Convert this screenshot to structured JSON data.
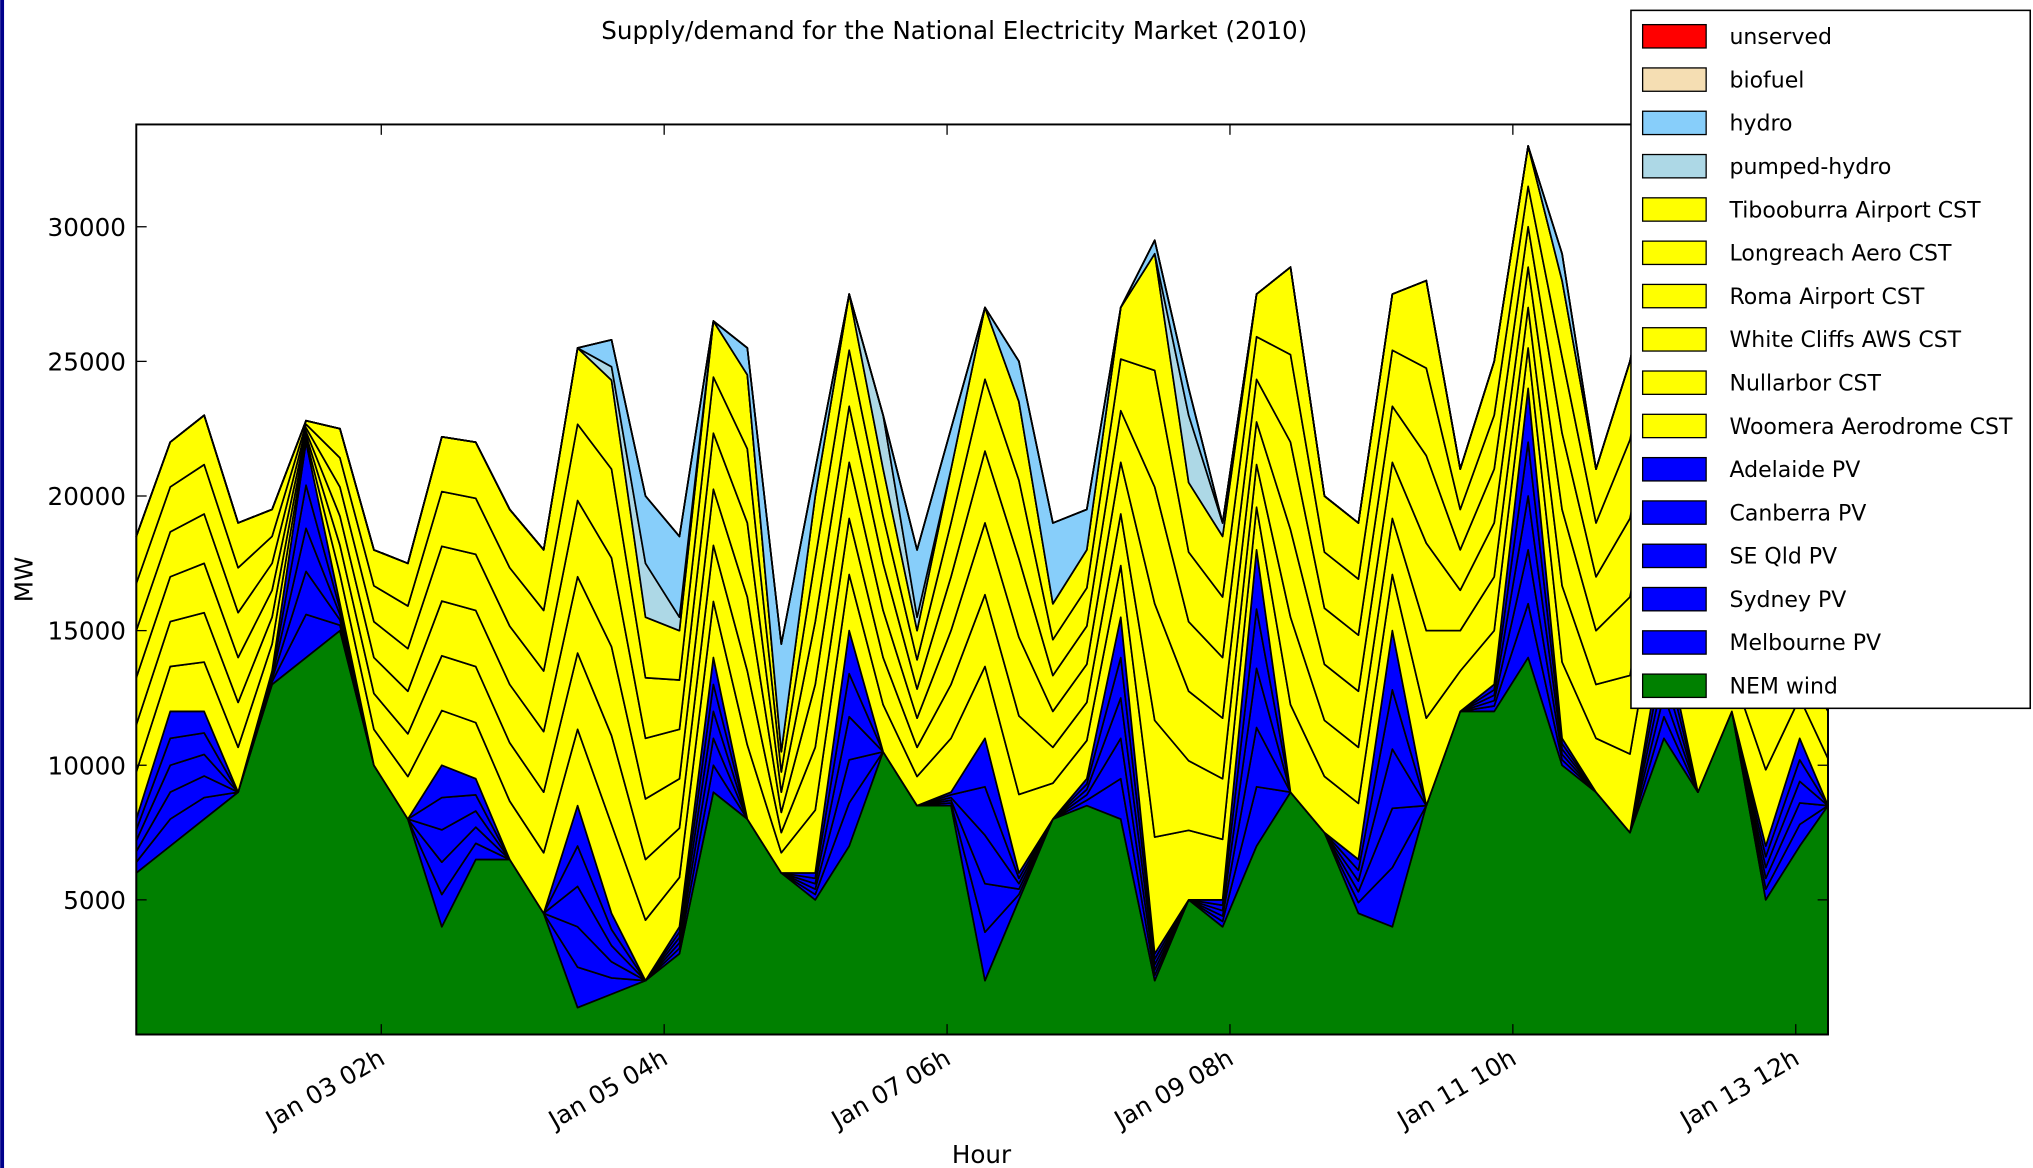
{
  "chart_data": {
    "type": "stacked-area",
    "title": "Supply/demand for the National Electricity Market (2010)",
    "x_label": "Hour",
    "y_label": "MW",
    "x": [
      0,
      6,
      12,
      18,
      24,
      30,
      36,
      42,
      48,
      54,
      60,
      66,
      72,
      78,
      84,
      90,
      96,
      102,
      108,
      114,
      120,
      126,
      132,
      138,
      144,
      150,
      156,
      162,
      168,
      174,
      180,
      186,
      192,
      198,
      204,
      210,
      216,
      222,
      228,
      234,
      240,
      246,
      252,
      258,
      264,
      270,
      276,
      282,
      288,
      294,
      299
    ],
    "xlim": [
      0,
      299
    ],
    "xticks": [
      {
        "value": 43.3,
        "label": "Jan 03 02h"
      },
      {
        "value": 93.3,
        "label": "Jan 05 04h"
      },
      {
        "value": 143.3,
        "label": "Jan 07 06h"
      },
      {
        "value": 193.3,
        "label": "Jan 09 08h"
      },
      {
        "value": 243.3,
        "label": "Jan 11 10h"
      },
      {
        "value": 293.3,
        "label": "Jan 13 12h"
      }
    ],
    "ylim": [
      0,
      33800
    ],
    "yticks": [
      5000,
      10000,
      15000,
      20000,
      25000,
      30000
    ],
    "grid": false,
    "legend": "upper right",
    "series": [
      {
        "name": "unserved",
        "color": "#ff0000",
        "values": [
          0,
          0,
          0,
          0,
          0,
          0,
          0,
          0,
          0,
          0,
          0,
          0,
          0,
          0,
          0,
          0,
          0,
          0,
          0,
          0,
          0,
          0,
          0,
          0,
          0,
          0,
          0,
          0,
          0,
          0,
          0,
          0,
          0,
          0,
          0,
          0,
          0,
          0,
          0,
          0,
          0,
          0,
          0,
          0,
          0,
          0,
          0,
          0,
          0,
          0,
          0
        ]
      },
      {
        "name": "biofuel",
        "color": "#f5deb3",
        "values": [
          0,
          0,
          0,
          0,
          0,
          0,
          0,
          0,
          0,
          0,
          0,
          0,
          0,
          0,
          0,
          0,
          0,
          0,
          0,
          0,
          0,
          0,
          0,
          0,
          0,
          0,
          0,
          0,
          0,
          0,
          0,
          0,
          0,
          0,
          0,
          0,
          0,
          0,
          0,
          0,
          0,
          0,
          0,
          0,
          0,
          0,
          0,
          0,
          0,
          0,
          0
        ]
      },
      {
        "name": "hydro",
        "color": "#87cefa",
        "values": [
          0,
          0,
          0,
          0,
          0,
          0,
          0,
          0,
          0,
          0,
          0,
          0,
          0,
          0,
          1000,
          2500,
          3000,
          0,
          1000,
          4000,
          1000,
          0,
          0,
          2500,
          1500,
          0,
          1500,
          3000,
          1500,
          0,
          500,
          1000,
          0,
          0,
          0,
          0,
          0,
          0,
          0,
          0,
          0,
          0,
          1000,
          0,
          0,
          0,
          0,
          0,
          0,
          0,
          0
        ]
      },
      {
        "name": "pumped-hydro",
        "color": "#add8e6",
        "values": [
          0,
          0,
          0,
          0,
          0,
          0,
          0,
          0,
          0,
          0,
          0,
          0,
          0,
          0,
          500,
          2000,
          500,
          0,
          0,
          0,
          0,
          0,
          2000,
          500,
          0,
          0,
          0,
          0,
          0,
          0,
          0,
          2500,
          500,
          0,
          0,
          0,
          0,
          0,
          0,
          0,
          0,
          0,
          0,
          0,
          0,
          0,
          0,
          0,
          0,
          0,
          0
        ]
      },
      {
        "name": "Tibooburra Airport CST",
        "color": "#ffff00",
        "values": [
          1750,
          1667,
          1833,
          1667,
          1000,
          133,
          1083,
          1333,
          1583,
          2033,
          2083,
          2167,
          2250,
          2833,
          3300,
          2250,
          1833,
          2083,
          2750,
          750,
          2333,
          2083,
          1750,
          1083,
          2000,
          2667,
          2917,
          1333,
          1417,
          1917,
          4333,
          2583,
          2250,
          1583,
          3250,
          2083,
          2083,
          2083,
          3250,
          1500,
          2000,
          1500,
          2833,
          2000,
          2917,
          2667,
          3167,
          1500,
          2833,
          1500,
          1750
        ]
      },
      {
        "name": "Longreach Aero CST",
        "color": "#ffff00",
        "values": [
          1750,
          1667,
          1833,
          1667,
          1000,
          133,
          1083,
          1333,
          1583,
          2033,
          2083,
          2167,
          2250,
          2833,
          3300,
          2250,
          1833,
          2083,
          2750,
          750,
          2333,
          2083,
          1750,
          1083,
          2000,
          2667,
          2917,
          1333,
          1417,
          1917,
          4333,
          2583,
          2250,
          1583,
          3250,
          2083,
          2083,
          2083,
          3250,
          1500,
          2000,
          1500,
          2833,
          2000,
          2917,
          2667,
          3167,
          1500,
          2833,
          1500,
          1750
        ]
      },
      {
        "name": "Roma Airport CST",
        "color": "#ffff00",
        "values": [
          1750,
          1667,
          1833,
          1667,
          1000,
          133,
          1083,
          1333,
          1583,
          2033,
          2083,
          2167,
          2250,
          2833,
          3300,
          2250,
          1833,
          2083,
          2750,
          750,
          2333,
          2083,
          1750,
          1083,
          2000,
          2667,
          2917,
          1333,
          1417,
          1917,
          4333,
          2583,
          2250,
          1583,
          3250,
          2083,
          2083,
          2083,
          3250,
          1500,
          2000,
          1500,
          2833,
          2000,
          2917,
          2667,
          3167,
          1500,
          2833,
          1500,
          1750
        ]
      },
      {
        "name": "White Cliffs AWS CST",
        "color": "#ffff00",
        "values": [
          1750,
          1667,
          1833,
          1667,
          1000,
          133,
          1083,
          1333,
          1583,
          2033,
          2083,
          2167,
          2250,
          2833,
          3300,
          2250,
          1833,
          2083,
          2750,
          750,
          2333,
          2083,
          1750,
          1083,
          2000,
          2667,
          2917,
          1333,
          1417,
          1917,
          4333,
          2583,
          2250,
          1583,
          3250,
          2083,
          2083,
          2083,
          3250,
          1500,
          2000,
          1500,
          2833,
          2000,
          2917,
          2667,
          3167,
          1500,
          2833,
          1500,
          1750
        ]
      },
      {
        "name": "Nullarbor CST",
        "color": "#ffff00",
        "values": [
          1750,
          1667,
          1833,
          1667,
          1000,
          133,
          1083,
          1333,
          1583,
          2033,
          2083,
          2167,
          2250,
          2833,
          3300,
          2250,
          1833,
          2083,
          2750,
          750,
          2333,
          2083,
          1750,
          1083,
          2000,
          2667,
          2917,
          1333,
          1417,
          1917,
          4333,
          2583,
          2250,
          1583,
          3250,
          2083,
          2083,
          2083,
          3250,
          1500,
          2000,
          1500,
          2833,
          2000,
          2917,
          2667,
          3167,
          1500,
          2833,
          1500,
          1750
        ]
      },
      {
        "name": "Woomera Aerodrome CST",
        "color": "#ffff00",
        "values": [
          1750,
          1667,
          1833,
          1667,
          1000,
          133,
          1083,
          1333,
          1583,
          2033,
          2083,
          2167,
          2250,
          2833,
          3300,
          2250,
          1833,
          2083,
          2750,
          750,
          2333,
          2083,
          1750,
          1083,
          2000,
          2667,
          2917,
          1333,
          1417,
          1917,
          4333,
          2583,
          2250,
          1583,
          3250,
          2083,
          2083,
          2083,
          3250,
          1500,
          2000,
          1500,
          2833,
          2000,
          2917,
          2667,
          3167,
          1500,
          2833,
          1500,
          1750
        ]
      },
      {
        "name": "Adelaide PV",
        "color": "#0000ff",
        "values": [
          400,
          1000,
          800,
          0,
          100,
          1600,
          200,
          0,
          0,
          1200,
          600,
          0,
          0,
          1500,
          600,
          0,
          200,
          1000,
          0,
          0,
          200,
          1600,
          0,
          0,
          100,
          1800,
          200,
          0,
          200,
          1500,
          200,
          0,
          200,
          2200,
          0,
          0,
          400,
          2200,
          0,
          0,
          200,
          2000,
          200,
          0,
          0,
          800,
          0,
          0,
          400,
          800,
          0
        ]
      },
      {
        "name": "Canberra PV",
        "color": "#0000ff",
        "values": [
          400,
          1000,
          800,
          0,
          100,
          1600,
          200,
          0,
          0,
          1200,
          600,
          0,
          0,
          1500,
          600,
          0,
          200,
          1000,
          0,
          0,
          200,
          1600,
          0,
          0,
          100,
          1800,
          200,
          0,
          200,
          1500,
          200,
          0,
          200,
          2200,
          0,
          0,
          400,
          2200,
          0,
          0,
          200,
          2000,
          200,
          0,
          0,
          800,
          0,
          0,
          400,
          800,
          0
        ]
      },
      {
        "name": "SE Qld PV",
        "color": "#0000ff",
        "values": [
          400,
          1000,
          800,
          0,
          100,
          1600,
          200,
          0,
          0,
          1200,
          600,
          0,
          0,
          1500,
          600,
          0,
          200,
          1000,
          0,
          0,
          200,
          1600,
          0,
          0,
          100,
          1800,
          200,
          0,
          200,
          1500,
          200,
          0,
          200,
          2200,
          0,
          0,
          400,
          2200,
          0,
          0,
          200,
          2000,
          200,
          0,
          0,
          800,
          0,
          0,
          400,
          800,
          0
        ]
      },
      {
        "name": "Sydney PV",
        "color": "#0000ff",
        "values": [
          400,
          1000,
          800,
          0,
          100,
          1600,
          200,
          0,
          0,
          1200,
          600,
          0,
          0,
          1500,
          600,
          0,
          200,
          1000,
          0,
          0,
          200,
          1600,
          0,
          0,
          100,
          1800,
          200,
          0,
          200,
          1500,
          200,
          0,
          200,
          2200,
          0,
          0,
          400,
          2200,
          0,
          0,
          200,
          2000,
          200,
          0,
          0,
          800,
          0,
          0,
          400,
          800,
          0
        ]
      },
      {
        "name": "Melbourne PV",
        "color": "#0000ff",
        "values": [
          400,
          1000,
          800,
          0,
          100,
          1600,
          200,
          0,
          0,
          1200,
          600,
          0,
          0,
          1500,
          600,
          0,
          200,
          1000,
          0,
          0,
          200,
          1600,
          0,
          0,
          100,
          1800,
          200,
          0,
          200,
          1500,
          200,
          0,
          200,
          2200,
          0,
          0,
          400,
          2200,
          0,
          0,
          200,
          2000,
          200,
          0,
          0,
          800,
          0,
          0,
          400,
          800,
          0
        ]
      },
      {
        "name": "NEM wind",
        "color": "#008000",
        "values": [
          6000,
          7000,
          8000,
          9000,
          13000,
          14000,
          15000,
          10000,
          8000,
          4000,
          6500,
          6500,
          4500,
          1000,
          1500,
          2000,
          3000,
          9000,
          8000,
          6000,
          5000,
          7000,
          10500,
          8500,
          8500,
          2000,
          5000,
          8000,
          8500,
          8000,
          2000,
          5000,
          4000,
          7000,
          9000,
          7500,
          4500,
          4000,
          8500,
          12000,
          12000,
          14000,
          10000,
          9000,
          7500,
          11000,
          9000,
          12000,
          5000,
          7000,
          8500
        ]
      }
    ]
  }
}
